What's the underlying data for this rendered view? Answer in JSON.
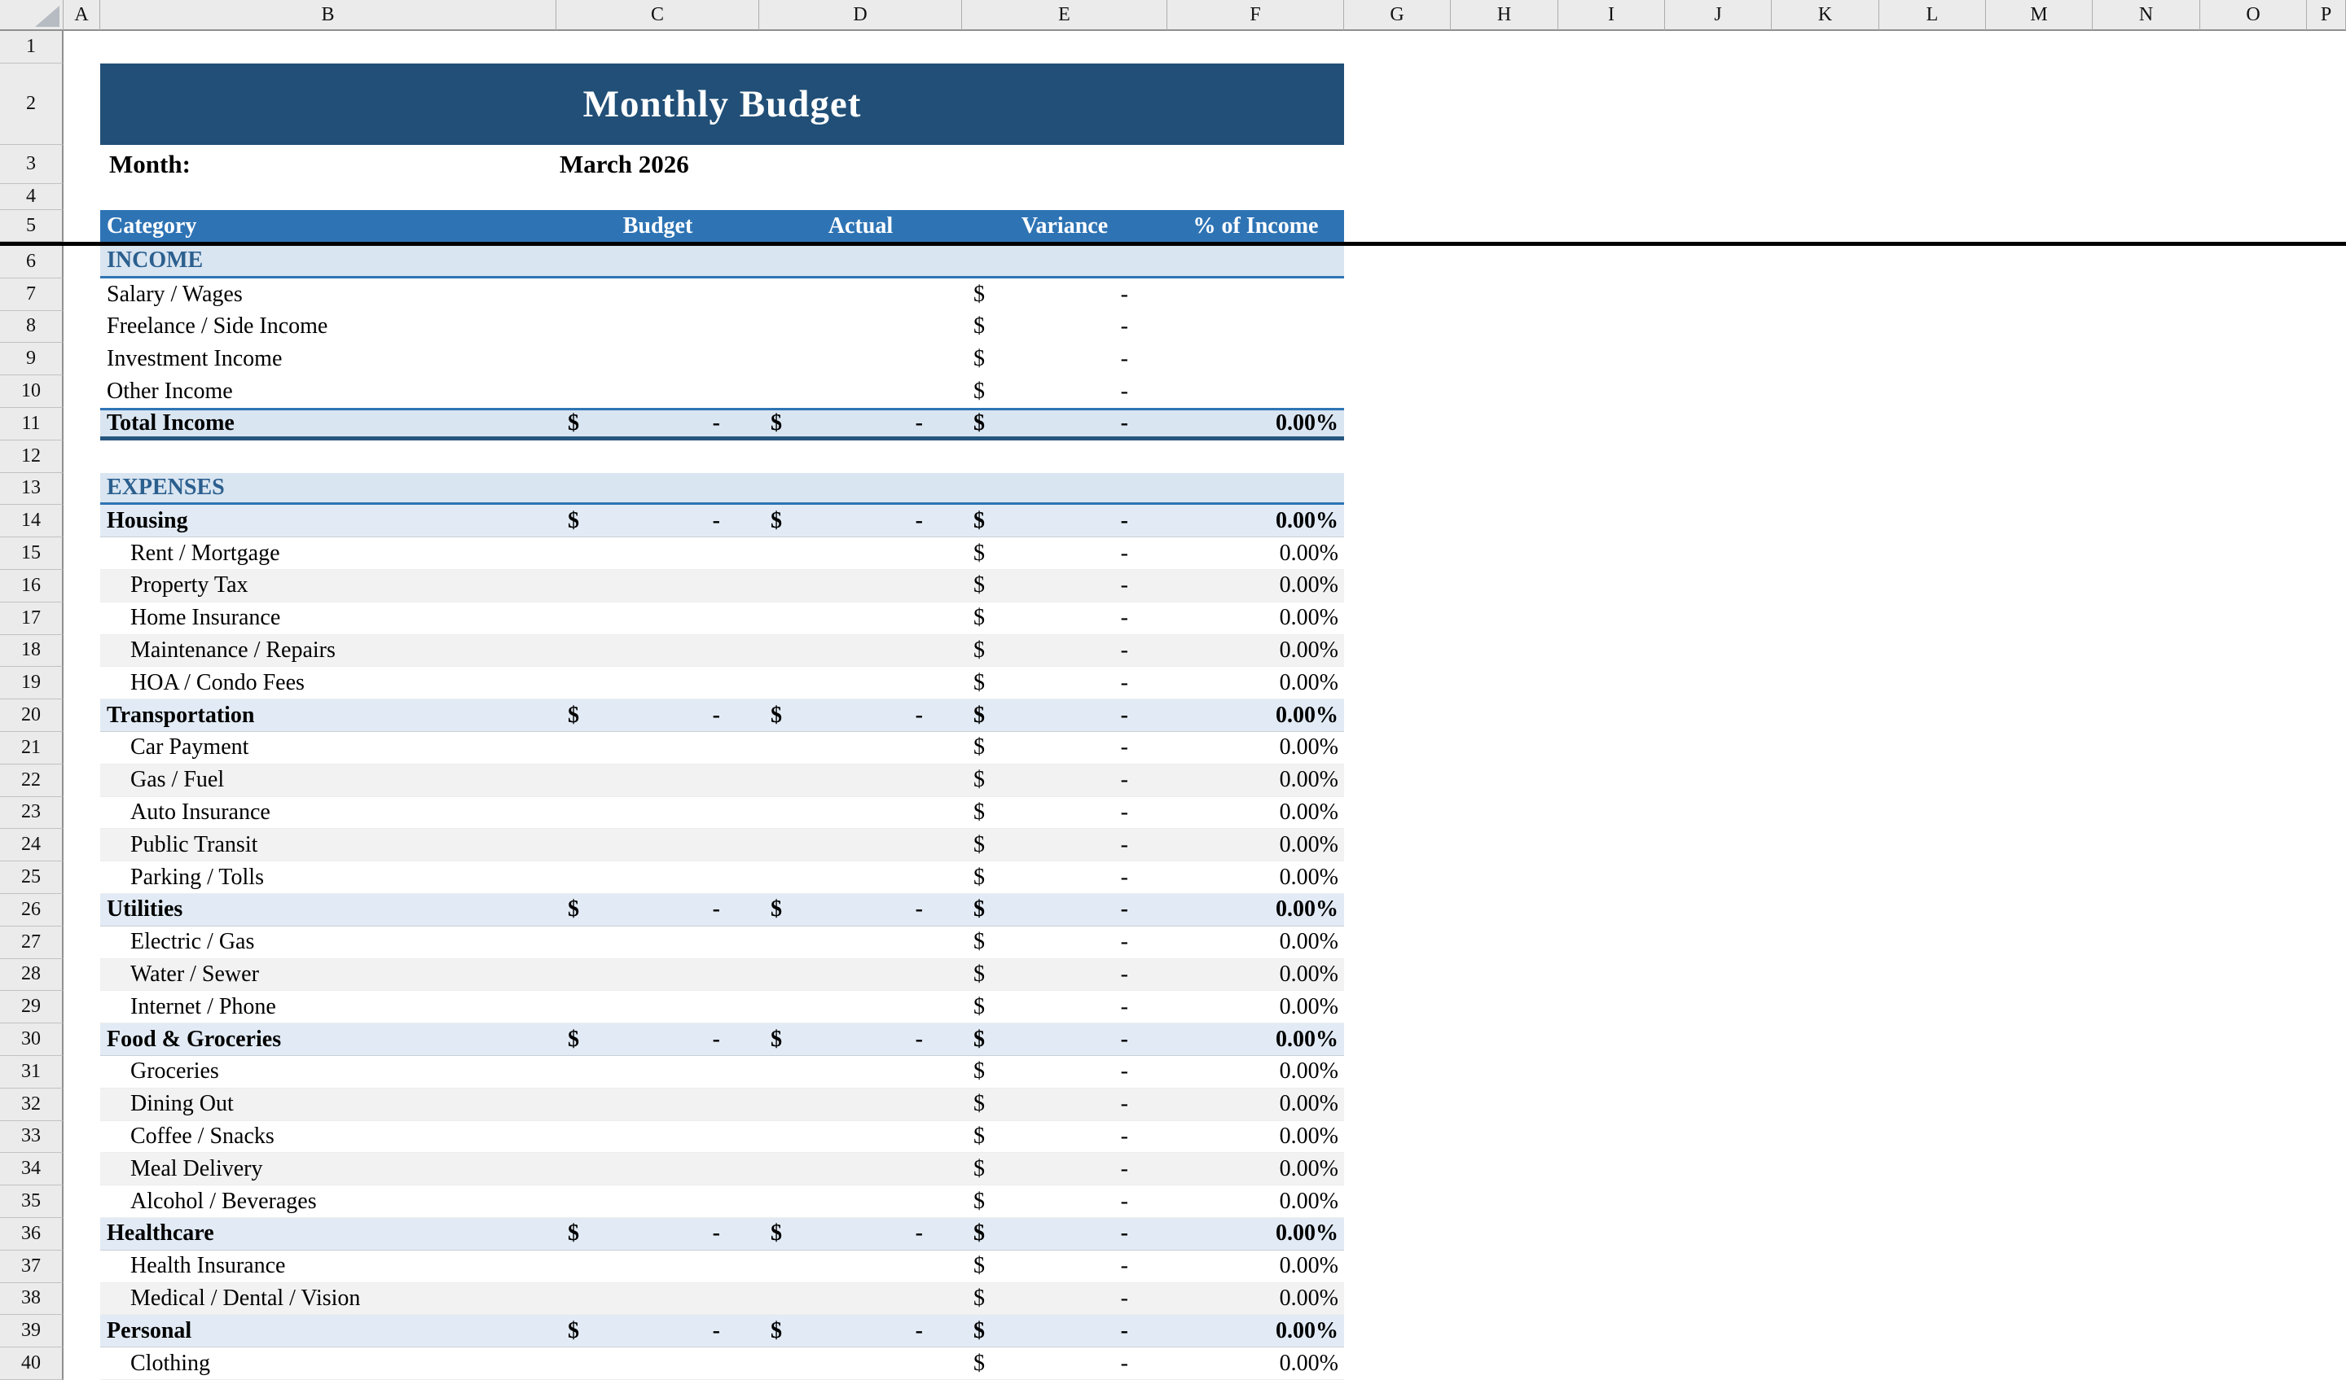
{
  "colors": {
    "banner_bg": "#214F77",
    "table_header_bg": "#2E74B5",
    "accent_border": "#2E74B5",
    "section_bg": "#D9E5F1",
    "category_bg": "#E2EBF5",
    "section_text": "#2B5F8E",
    "total_bottom_border": "#27567F",
    "alt_row_bg": "#F2F2F2",
    "gutter_bg": "#EBEBEB",
    "freeze_line": "#000000"
  },
  "spreadsheet": {
    "title": "Monthly Budget",
    "month": {
      "label": "Month:",
      "value": "March 2026"
    },
    "table_headers": {
      "category": "Category",
      "budget": "Budget",
      "actual": "Actual",
      "variance": "Variance",
      "pct_of_income": "% of Income"
    },
    "column_letters": [
      "A",
      "B",
      "C",
      "D",
      "E",
      "F",
      "G",
      "H",
      "I",
      "J",
      "K",
      "L",
      "M",
      "N",
      "O",
      "P"
    ],
    "row_headers": [
      "1",
      "2",
      "3",
      "4",
      "5",
      "6",
      "7",
      "8",
      "9",
      "10",
      "11",
      "12",
      "13",
      "14",
      "15",
      "16",
      "17",
      "18",
      "19",
      "20",
      "21",
      "22",
      "23",
      "24",
      "25",
      "26",
      "27",
      "28",
      "29",
      "30",
      "31",
      "32",
      "33",
      "34",
      "35",
      "36",
      "37",
      "38",
      "39",
      "40"
    ],
    "rows": [
      {
        "row": 6,
        "kind": "section",
        "label": "INCOME",
        "budget": "",
        "actual": "",
        "variance": "",
        "pct_of_income": ""
      },
      {
        "row": 7,
        "kind": "income",
        "label": "Salary / Wages",
        "budget": "",
        "actual": "",
        "variance": "$ -",
        "pct_of_income": ""
      },
      {
        "row": 8,
        "kind": "income",
        "label": "Freelance / Side Income",
        "budget": "",
        "actual": "",
        "variance": "$ -",
        "pct_of_income": ""
      },
      {
        "row": 9,
        "kind": "income",
        "label": "Investment Income",
        "budget": "",
        "actual": "",
        "variance": "$ -",
        "pct_of_income": ""
      },
      {
        "row": 10,
        "kind": "income",
        "label": "Other Income",
        "budget": "",
        "actual": "",
        "variance": "$ -",
        "pct_of_income": ""
      },
      {
        "row": 11,
        "kind": "total",
        "label": "Total Income",
        "budget": "$ -",
        "actual": "$ -",
        "variance": "$ -",
        "pct_of_income": "0.00%"
      },
      {
        "row": 12,
        "kind": "empty",
        "label": "",
        "budget": "",
        "actual": "",
        "variance": "",
        "pct_of_income": ""
      },
      {
        "row": 13,
        "kind": "section",
        "label": "EXPENSES",
        "budget": "",
        "actual": "",
        "variance": "",
        "pct_of_income": ""
      },
      {
        "row": 14,
        "kind": "category",
        "label": "Housing",
        "budget": "$ -",
        "actual": "$ -",
        "variance": "$ -",
        "pct_of_income": "0.00%"
      },
      {
        "row": 15,
        "kind": "sub",
        "shade": "white",
        "label": "Rent / Mortgage",
        "budget": "",
        "actual": "",
        "variance": "$ -",
        "pct_of_income": "0.00%"
      },
      {
        "row": 16,
        "kind": "sub",
        "shade": "gray",
        "label": "Property Tax",
        "budget": "",
        "actual": "",
        "variance": "$ -",
        "pct_of_income": "0.00%"
      },
      {
        "row": 17,
        "kind": "sub",
        "shade": "white",
        "label": "Home Insurance",
        "budget": "",
        "actual": "",
        "variance": "$ -",
        "pct_of_income": "0.00%"
      },
      {
        "row": 18,
        "kind": "sub",
        "shade": "gray",
        "label": "Maintenance / Repairs",
        "budget": "",
        "actual": "",
        "variance": "$ -",
        "pct_of_income": "0.00%"
      },
      {
        "row": 19,
        "kind": "sub",
        "shade": "white",
        "label": "HOA / Condo Fees",
        "budget": "",
        "actual": "",
        "variance": "$ -",
        "pct_of_income": "0.00%"
      },
      {
        "row": 20,
        "kind": "category",
        "label": "Transportation",
        "budget": "$ -",
        "actual": "$ -",
        "variance": "$ -",
        "pct_of_income": "0.00%"
      },
      {
        "row": 21,
        "kind": "sub",
        "shade": "white",
        "label": "Car Payment",
        "budget": "",
        "actual": "",
        "variance": "$ -",
        "pct_of_income": "0.00%"
      },
      {
        "row": 22,
        "kind": "sub",
        "shade": "gray",
        "label": "Gas / Fuel",
        "budget": "",
        "actual": "",
        "variance": "$ -",
        "pct_of_income": "0.00%"
      },
      {
        "row": 23,
        "kind": "sub",
        "shade": "white",
        "label": "Auto Insurance",
        "budget": "",
        "actual": "",
        "variance": "$ -",
        "pct_of_income": "0.00%"
      },
      {
        "row": 24,
        "kind": "sub",
        "shade": "gray",
        "label": "Public Transit",
        "budget": "",
        "actual": "",
        "variance": "$ -",
        "pct_of_income": "0.00%"
      },
      {
        "row": 25,
        "kind": "sub",
        "shade": "white",
        "label": "Parking / Tolls",
        "budget": "",
        "actual": "",
        "variance": "$ -",
        "pct_of_income": "0.00%"
      },
      {
        "row": 26,
        "kind": "category",
        "label": "Utilities",
        "budget": "$ -",
        "actual": "$ -",
        "variance": "$ -",
        "pct_of_income": "0.00%"
      },
      {
        "row": 27,
        "kind": "sub",
        "shade": "white",
        "label": "Electric / Gas",
        "budget": "",
        "actual": "",
        "variance": "$ -",
        "pct_of_income": "0.00%"
      },
      {
        "row": 28,
        "kind": "sub",
        "shade": "gray",
        "label": "Water / Sewer",
        "budget": "",
        "actual": "",
        "variance": "$ -",
        "pct_of_income": "0.00%"
      },
      {
        "row": 29,
        "kind": "sub",
        "shade": "white",
        "label": "Internet / Phone",
        "budget": "",
        "actual": "",
        "variance": "$ -",
        "pct_of_income": "0.00%"
      },
      {
        "row": 30,
        "kind": "category",
        "label": "Food & Groceries",
        "budget": "$ -",
        "actual": "$ -",
        "variance": "$ -",
        "pct_of_income": "0.00%"
      },
      {
        "row": 31,
        "kind": "sub",
        "shade": "white",
        "label": "Groceries",
        "budget": "",
        "actual": "",
        "variance": "$ -",
        "pct_of_income": "0.00%"
      },
      {
        "row": 32,
        "kind": "sub",
        "shade": "gray",
        "label": "Dining Out",
        "budget": "",
        "actual": "",
        "variance": "$ -",
        "pct_of_income": "0.00%"
      },
      {
        "row": 33,
        "kind": "sub",
        "shade": "white",
        "label": "Coffee / Snacks",
        "budget": "",
        "actual": "",
        "variance": "$ -",
        "pct_of_income": "0.00%"
      },
      {
        "row": 34,
        "kind": "sub",
        "shade": "gray",
        "label": "Meal Delivery",
        "budget": "",
        "actual": "",
        "variance": "$ -",
        "pct_of_income": "0.00%"
      },
      {
        "row": 35,
        "kind": "sub",
        "shade": "white",
        "label": "Alcohol / Beverages",
        "budget": "",
        "actual": "",
        "variance": "$ -",
        "pct_of_income": "0.00%"
      },
      {
        "row": 36,
        "kind": "category",
        "label": "Healthcare",
        "budget": "$ -",
        "actual": "$ -",
        "variance": "$ -",
        "pct_of_income": "0.00%"
      },
      {
        "row": 37,
        "kind": "sub",
        "shade": "white",
        "label": "Health Insurance",
        "budget": "",
        "actual": "",
        "variance": "$ -",
        "pct_of_income": "0.00%"
      },
      {
        "row": 38,
        "kind": "sub",
        "shade": "gray",
        "label": "Medical / Dental / Vision",
        "budget": "",
        "actual": "",
        "variance": "$ -",
        "pct_of_income": "0.00%"
      },
      {
        "row": 39,
        "kind": "category",
        "label": "Personal",
        "budget": "$ -",
        "actual": "$ -",
        "variance": "$ -",
        "pct_of_income": "0.00%"
      },
      {
        "row": 40,
        "kind": "sub",
        "shade": "white",
        "label": "Clothing",
        "budget": "",
        "actual": "",
        "variance": "$ -",
        "pct_of_income": "0.00%"
      }
    ]
  }
}
